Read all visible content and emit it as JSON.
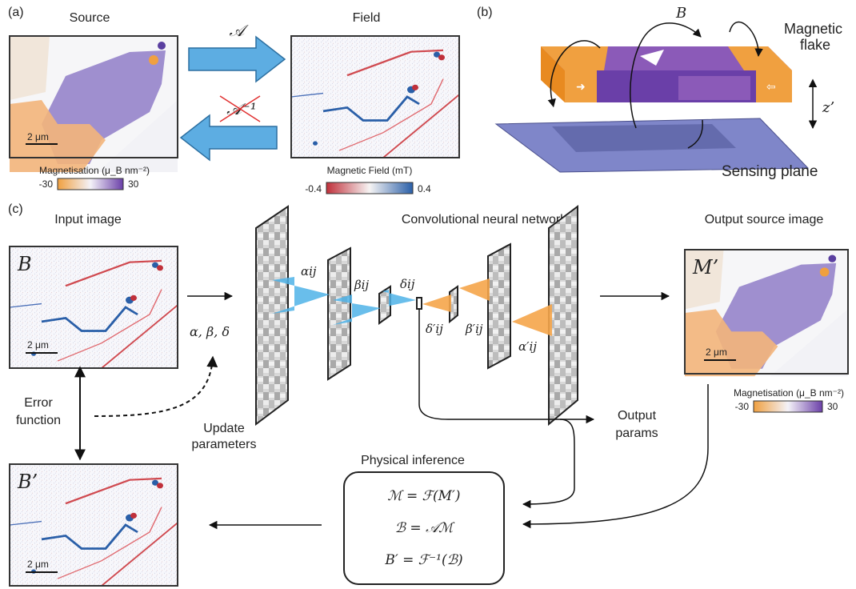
{
  "panel_a": {
    "label": "(a)",
    "source_title": "Source",
    "field_title": "Field",
    "forward_op": "𝒜",
    "inverse_op": "𝒜⁻¹",
    "scalebar": "2 μm",
    "mag_colorbar": {
      "title": "Magnetisation (μ_B nm⁻²)",
      "min": "-30",
      "max": "30"
    },
    "field_colorbar": {
      "title": "Magnetic Field (mT)",
      "min": "-0.4",
      "max": "0.4"
    }
  },
  "panel_b": {
    "label": "(b)",
    "field_symbol": "B",
    "flake_label_line1": "Magnetic",
    "flake_label_line2": "flake",
    "height_symbol": "z’",
    "plane_label": "Sensing plane"
  },
  "panel_c": {
    "label": "(c)",
    "input_title": "Input image",
    "input_symbol": "B",
    "cnn_title": "Convolutional neural network",
    "output_title": "Output source image",
    "output_symbol": "M’",
    "params": "α, β, δ",
    "layer_alpha": "αij",
    "layer_beta": "βij",
    "layer_delta": "δij",
    "layer_delta_p": "δ′ij",
    "layer_beta_p": "β′ij",
    "layer_alpha_p": "α′ij",
    "error_line1": "Error",
    "error_line2": "function",
    "update_line1": "Update",
    "update_line2": "parameters",
    "output_params_line1": "Output",
    "output_params_line2": "params",
    "physics_title": "Physical inference",
    "eq1": "ℳ = ℱ(M′)",
    "eq2": "ℬ = 𝒜ℳ",
    "eq3": "B′ = ℱ⁻¹(ℬ)",
    "recon_symbol": "B’",
    "scalebar": "2 μm",
    "mag_colorbar": {
      "title": "Magnetisation (μ_B nm⁻²)",
      "min": "-30",
      "max": "30"
    }
  },
  "colors": {
    "arrow_blue": "#5dade2",
    "cnn_blue": "#4fb3e8",
    "cnn_orange": "#f5a54a",
    "purple": "#7b4fb0",
    "orange": "#f0a040",
    "plane": "#7f86c9"
  }
}
